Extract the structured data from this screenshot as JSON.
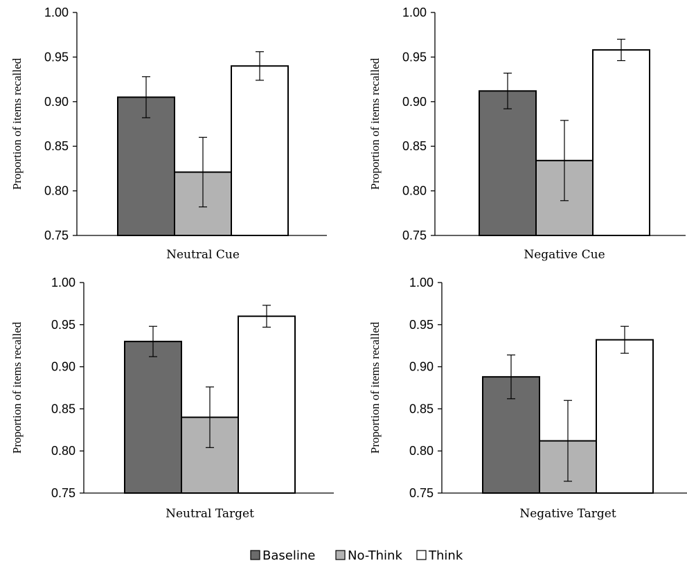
{
  "colors": {
    "Baseline": "#6b6b6b",
    "No-Think": "#b3b3b3",
    "Think": "#ffffff"
  },
  "legend": [
    {
      "label": "Baseline",
      "color_key": "Baseline"
    },
    {
      "label": "No-Think",
      "color_key": "No-Think"
    },
    {
      "label": "Think",
      "color_key": "Think"
    }
  ],
  "chart_data": [
    {
      "type": "bar",
      "categories": [
        "Neutral Cue"
      ],
      "series": [
        {
          "name": "Baseline",
          "values": [
            0.905
          ],
          "error": [
            0.023
          ]
        },
        {
          "name": "No-Think",
          "values": [
            0.821
          ],
          "error": [
            0.039
          ]
        },
        {
          "name": "Think",
          "values": [
            0.94
          ],
          "error": [
            0.016
          ]
        }
      ],
      "ylabel": "Proportion of items recalled",
      "ylim": [
        0.75,
        1.0
      ],
      "yticks": [
        "0.75",
        "0.80",
        "0.85",
        "0.90",
        "0.95",
        "1.00"
      ],
      "grid": false
    },
    {
      "type": "bar",
      "categories": [
        "Negative Cue"
      ],
      "series": [
        {
          "name": "Baseline",
          "values": [
            0.912
          ],
          "error": [
            0.02
          ]
        },
        {
          "name": "No-Think",
          "values": [
            0.834
          ],
          "error": [
            0.045
          ]
        },
        {
          "name": "Think",
          "values": [
            0.958
          ],
          "error": [
            0.012
          ]
        }
      ],
      "ylabel": "Proportion of items recalled",
      "ylim": [
        0.75,
        1.0
      ],
      "yticks": [
        "0.75",
        "0.80",
        "0.85",
        "0.90",
        "0.95",
        "1.00"
      ],
      "grid": false
    },
    {
      "type": "bar",
      "categories": [
        "Neutral Target"
      ],
      "series": [
        {
          "name": "Baseline",
          "values": [
            0.93
          ],
          "error": [
            0.018
          ]
        },
        {
          "name": "No-Think",
          "values": [
            0.84
          ],
          "error": [
            0.036
          ]
        },
        {
          "name": "Think",
          "values": [
            0.96
          ],
          "error": [
            0.013
          ]
        }
      ],
      "ylabel": "Proportion of items recalled",
      "ylim": [
        0.75,
        1.0
      ],
      "yticks": [
        "0.75",
        "0.80",
        "0.85",
        "0.90",
        "0.95",
        "1.00"
      ],
      "grid": false
    },
    {
      "type": "bar",
      "categories": [
        "Negative Target"
      ],
      "series": [
        {
          "name": "Baseline",
          "values": [
            0.888
          ],
          "error": [
            0.026
          ]
        },
        {
          "name": "No-Think",
          "values": [
            0.812
          ],
          "error": [
            0.048
          ]
        },
        {
          "name": "Think",
          "values": [
            0.932
          ],
          "error": [
            0.016
          ]
        }
      ],
      "ylabel": "Proportion of items recalled",
      "ylim": [
        0.75,
        1.0
      ],
      "yticks": [
        "0.75",
        "0.80",
        "0.85",
        "0.90",
        "0.95",
        "1.00"
      ],
      "grid": false
    }
  ]
}
